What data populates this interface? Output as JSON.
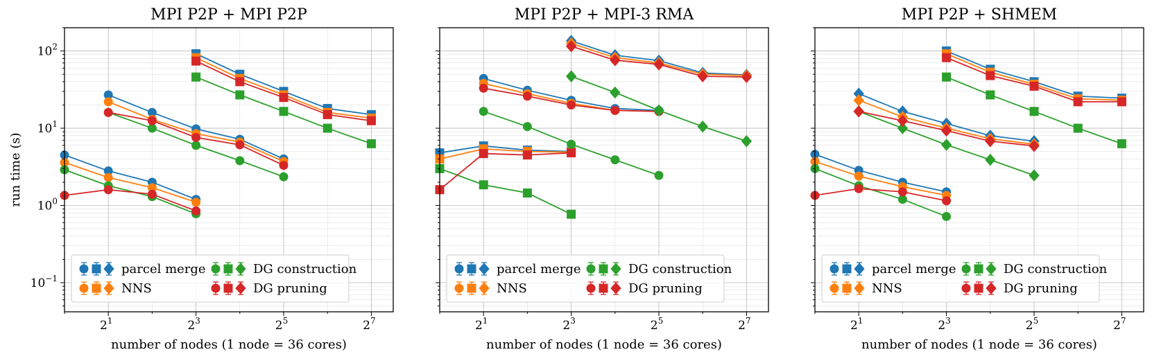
{
  "chart_data": [
    {
      "type": "line",
      "title": "MPI P2P + MPI P2P",
      "xlabel": "number of nodes (1 node = 36 cores)",
      "ylabel": "run time (s)",
      "xscale": "log2",
      "yscale": "log10",
      "xlim": [
        1,
        181
      ],
      "ylim": [
        0.042,
        200
      ],
      "xticks": [
        {
          "base": "2",
          "exp": "1"
        },
        {
          "base": "2",
          "exp": "3"
        },
        {
          "base": "2",
          "exp": "5"
        },
        {
          "base": "2",
          "exp": "7"
        }
      ],
      "yticks": [
        {
          "base": "10",
          "exp": "−1"
        },
        {
          "base": "10",
          "exp": "0"
        },
        {
          "base": "10",
          "exp": "1"
        },
        {
          "base": "10",
          "exp": "2"
        }
      ],
      "legend_position": "lower-left",
      "series": [
        {
          "name": "parcel merge",
          "marker": "circle",
          "x": [
            1,
            2,
            4,
            8
          ],
          "values": [
            4.5,
            2.8,
            2.0,
            1.2
          ]
        },
        {
          "name": "NNS",
          "marker": "circle",
          "x": [
            1,
            2,
            4,
            8
          ],
          "values": [
            3.6,
            2.3,
            1.7,
            1.1
          ]
        },
        {
          "name": "DG construction",
          "marker": "circle",
          "x": [
            1,
            2,
            4,
            8
          ],
          "values": [
            2.9,
            1.8,
            1.3,
            0.78
          ]
        },
        {
          "name": "DG pruning",
          "marker": "circle",
          "x": [
            1,
            2,
            4,
            8
          ],
          "values": [
            1.35,
            1.6,
            1.4,
            0.85
          ]
        },
        {
          "name": "parcel merge",
          "marker": "circle",
          "x": [
            2,
            4,
            8,
            16,
            32
          ],
          "values": [
            27,
            16,
            9.8,
            7.2,
            4.0
          ]
        },
        {
          "name": "NNS",
          "marker": "circle",
          "x": [
            2,
            4,
            8,
            16,
            32
          ],
          "values": [
            22,
            13,
            8.5,
            6.6,
            3.7
          ]
        },
        {
          "name": "DG construction",
          "marker": "circle",
          "x": [
            2,
            4,
            8,
            16,
            32
          ],
          "values": [
            16,
            10,
            6.0,
            3.8,
            2.35
          ]
        },
        {
          "name": "DG pruning",
          "marker": "circle",
          "x": [
            2,
            4,
            8,
            16,
            32
          ],
          "values": [
            16,
            12.5,
            7.6,
            6.1,
            3.3
          ]
        },
        {
          "name": "parcel merge",
          "marker": "square",
          "x": [
            8,
            16,
            32,
            64,
            128
          ],
          "values": [
            92,
            50,
            30,
            18,
            15
          ]
        },
        {
          "name": "NNS",
          "marker": "square",
          "x": [
            8,
            16,
            32,
            64,
            128
          ],
          "values": [
            82,
            44,
            27,
            16,
            13.5
          ]
        },
        {
          "name": "DG construction",
          "marker": "square",
          "x": [
            8,
            16,
            32,
            64,
            128
          ],
          "values": [
            46,
            27,
            16.5,
            10,
            6.3
          ]
        },
        {
          "name": "DG pruning",
          "marker": "square",
          "x": [
            8,
            16,
            32,
            64,
            128
          ],
          "values": [
            74,
            40,
            25,
            15,
            12.5
          ]
        }
      ],
      "legend": [
        {
          "label": "parcel merge",
          "color": "#1f77b4"
        },
        {
          "label": "NNS",
          "color": "#ff7f0e"
        },
        {
          "label": "DG construction",
          "color": "#2ca02c"
        },
        {
          "label": "DG pruning",
          "color": "#d62728"
        }
      ]
    },
    {
      "type": "line",
      "title": "MPI P2P + MPI-3 RMA",
      "xlabel": "number of nodes (1 node = 36 cores)",
      "ylabel": "",
      "xscale": "log2",
      "yscale": "log10",
      "xlim": [
        1,
        181
      ],
      "ylim": [
        0.042,
        200
      ],
      "xticks": [
        {
          "base": "2",
          "exp": "1"
        },
        {
          "base": "2",
          "exp": "3"
        },
        {
          "base": "2",
          "exp": "5"
        },
        {
          "base": "2",
          "exp": "7"
        }
      ],
      "yticks": [],
      "legend_position": "lower-left",
      "series": [
        {
          "name": "parcel merge",
          "marker": "square",
          "x": [
            1,
            2,
            4,
            8
          ],
          "values": [
            4.8,
            5.9,
            5.2,
            5.0
          ]
        },
        {
          "name": "NNS",
          "marker": "square",
          "x": [
            1,
            2,
            4,
            8
          ],
          "values": [
            4.0,
            5.4,
            5.0,
            4.9
          ]
        },
        {
          "name": "DG construction",
          "marker": "square",
          "x": [
            1,
            2,
            4,
            8
          ],
          "values": [
            3.0,
            1.85,
            1.45,
            0.77
          ]
        },
        {
          "name": "DG pruning",
          "marker": "square",
          "x": [
            1,
            2,
            4,
            8
          ],
          "values": [
            1.6,
            4.7,
            4.5,
            4.8
          ]
        },
        {
          "name": "parcel merge",
          "marker": "circle",
          "x": [
            2,
            4,
            8,
            16,
            32
          ],
          "values": [
            44,
            31,
            23,
            18,
            17
          ]
        },
        {
          "name": "NNS",
          "marker": "circle",
          "x": [
            2,
            4,
            8,
            16,
            32
          ],
          "values": [
            38,
            28,
            21,
            17,
            16.5
          ]
        },
        {
          "name": "DG construction",
          "marker": "circle",
          "x": [
            2,
            4,
            8,
            16,
            32
          ],
          "values": [
            16.5,
            10.5,
            6.2,
            3.9,
            2.45
          ]
        },
        {
          "name": "DG pruning",
          "marker": "circle",
          "x": [
            2,
            4,
            8,
            16,
            32
          ],
          "values": [
            33,
            26,
            20,
            17,
            16.5
          ]
        },
        {
          "name": "parcel merge",
          "marker": "diamond",
          "x": [
            8,
            16,
            32,
            64,
            128
          ],
          "values": [
            135,
            88,
            75,
            52,
            49
          ]
        },
        {
          "name": "NNS",
          "marker": "diamond",
          "x": [
            8,
            16,
            32,
            64,
            128
          ],
          "values": [
            125,
            82,
            70,
            50,
            48
          ]
        },
        {
          "name": "DG construction",
          "marker": "diamond",
          "x": [
            8,
            16,
            32,
            64,
            128
          ],
          "values": [
            47,
            29,
            17,
            10.5,
            6.8
          ]
        },
        {
          "name": "DG pruning",
          "marker": "diamond",
          "x": [
            8,
            16,
            32,
            64,
            128
          ],
          "values": [
            115,
            76,
            67,
            47,
            46
          ]
        }
      ],
      "legend": [
        {
          "label": "parcel merge",
          "color": "#1f77b4"
        },
        {
          "label": "NNS",
          "color": "#ff7f0e"
        },
        {
          "label": "DG construction",
          "color": "#2ca02c"
        },
        {
          "label": "DG pruning",
          "color": "#d62728"
        }
      ]
    },
    {
      "type": "line",
      "title": "MPI P2P + SHMEM",
      "xlabel": "number of nodes (1 node = 36 cores)",
      "ylabel": "",
      "xscale": "log2",
      "yscale": "log10",
      "xlim": [
        1,
        181
      ],
      "ylim": [
        0.042,
        200
      ],
      "xticks": [
        {
          "base": "2",
          "exp": "1"
        },
        {
          "base": "2",
          "exp": "3"
        },
        {
          "base": "2",
          "exp": "5"
        },
        {
          "base": "2",
          "exp": "7"
        }
      ],
      "yticks": [],
      "legend_position": "lower-left",
      "series": [
        {
          "name": "parcel merge",
          "marker": "circle",
          "x": [
            1,
            2,
            4,
            8
          ],
          "values": [
            4.6,
            2.85,
            2.0,
            1.5
          ]
        },
        {
          "name": "NNS",
          "marker": "circle",
          "x": [
            1,
            2,
            4,
            8
          ],
          "values": [
            3.7,
            2.4,
            1.75,
            1.35
          ]
        },
        {
          "name": "DG construction",
          "marker": "circle",
          "x": [
            1,
            2,
            4,
            8
          ],
          "values": [
            3.0,
            1.8,
            1.2,
            0.72
          ]
        },
        {
          "name": "DG pruning",
          "marker": "circle",
          "x": [
            1,
            2,
            4,
            8
          ],
          "values": [
            1.35,
            1.65,
            1.5,
            1.15
          ]
        },
        {
          "name": "parcel merge",
          "marker": "diamond",
          "x": [
            2,
            4,
            8,
            16,
            32
          ],
          "values": [
            28,
            16.5,
            11.5,
            8.0,
            6.8
          ]
        },
        {
          "name": "NNS",
          "marker": "diamond",
          "x": [
            2,
            4,
            8,
            16,
            32
          ],
          "values": [
            23,
            14,
            10,
            7.3,
            6.2
          ]
        },
        {
          "name": "DG construction",
          "marker": "diamond",
          "x": [
            2,
            4,
            8,
            16,
            32
          ],
          "values": [
            16.5,
            10,
            6.1,
            3.9,
            2.45
          ]
        },
        {
          "name": "DG pruning",
          "marker": "diamond",
          "x": [
            2,
            4,
            8,
            16,
            32
          ],
          "values": [
            16.5,
            12.5,
            9.3,
            6.8,
            5.9
          ]
        },
        {
          "name": "parcel merge",
          "marker": "square",
          "x": [
            8,
            16,
            32,
            64,
            128
          ],
          "values": [
            100,
            58,
            40,
            26,
            24.5
          ]
        },
        {
          "name": "NNS",
          "marker": "square",
          "x": [
            8,
            16,
            32,
            64,
            128
          ],
          "values": [
            92,
            53,
            37,
            24,
            23
          ]
        },
        {
          "name": "DG construction",
          "marker": "square",
          "x": [
            8,
            16,
            32,
            64,
            128
          ],
          "values": [
            46,
            27,
            16.5,
            10,
            6.3
          ]
        },
        {
          "name": "DG pruning",
          "marker": "square",
          "x": [
            8,
            16,
            32,
            64,
            128
          ],
          "values": [
            82,
            48,
            35,
            22,
            22
          ]
        }
      ],
      "legend": [
        {
          "label": "parcel merge",
          "color": "#1f77b4"
        },
        {
          "label": "NNS",
          "color": "#ff7f0e"
        },
        {
          "label": "DG construction",
          "color": "#2ca02c"
        },
        {
          "label": "DG pruning",
          "color": "#d62728"
        }
      ]
    }
  ]
}
